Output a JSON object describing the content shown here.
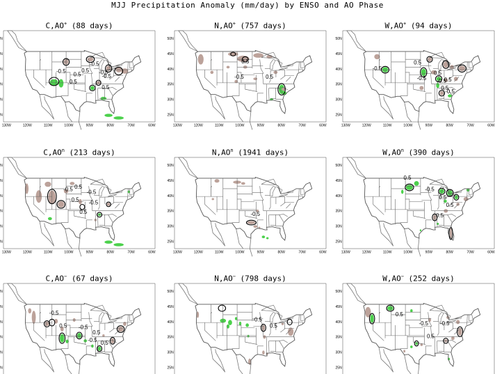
{
  "title": "MJJ Precipitation Anomaly (mm/day) by ENSO and AO Phase",
  "colors": {
    "wet": "#4cd14c",
    "dry": "#bca29a",
    "border": "#000000",
    "coast": "#777777"
  },
  "axes": {
    "lat_ticks": [
      "50N",
      "45N",
      "40N",
      "35N",
      "30N",
      "25N"
    ],
    "lon_ticks": [
      "130W",
      "120W",
      "110W",
      "100W",
      "90W",
      "80W",
      "70W",
      "60W"
    ]
  },
  "panels": [
    {
      "enso": "C",
      "ao_sup": "+",
      "days": "(88 days)",
      "contour_labels": [
        "-0.5",
        "-0.5",
        "0.5",
        "-0.5",
        "0.5",
        "-0.5",
        "0.5",
        "0.5"
      ]
    },
    {
      "enso": "N",
      "ao_sup": "+",
      "days": "(757 days)",
      "contour_labels": [
        "0.5",
        "-0.5",
        "0.5"
      ]
    },
    {
      "enso": "W",
      "ao_sup": "+",
      "days": "(94 days)",
      "contour_labels": [
        "-0.5",
        "0.5",
        "-0.5",
        "0.5",
        "-0.5",
        "0.5",
        "0.5",
        "-0.5"
      ]
    },
    {
      "enso": "C",
      "ao_sup": "n",
      "days": "(213 days)",
      "contour_labels": [
        "-0.5",
        "0.5",
        "-0.5",
        "0.5",
        "-0.5",
        "0.5"
      ]
    },
    {
      "enso": "N",
      "ao_sup": "n",
      "days": "(1941 days)",
      "contour_labels": [
        "-0.5"
      ]
    },
    {
      "enso": "W",
      "ao_sup": "n",
      "days": "(390 days)",
      "contour_labels": [
        "0.5",
        "-0.5",
        "0.5",
        "0.5",
        "0.5"
      ]
    },
    {
      "enso": "C",
      "ao_sup": "−",
      "days": "(67 days)",
      "contour_labels": [
        "-0.5",
        "0.5",
        "-0.5",
        "0.5",
        "-0.5",
        "0.5"
      ]
    },
    {
      "enso": "N",
      "ao_sup": "−",
      "days": "(798 days)",
      "contour_labels": [
        "-0.5",
        "0.5"
      ]
    },
    {
      "enso": "W",
      "ao_sup": "−",
      "days": "(252 days)",
      "contour_labels": [
        "0.5",
        "-0.5",
        "0.5",
        "-0.5"
      ]
    }
  ]
}
